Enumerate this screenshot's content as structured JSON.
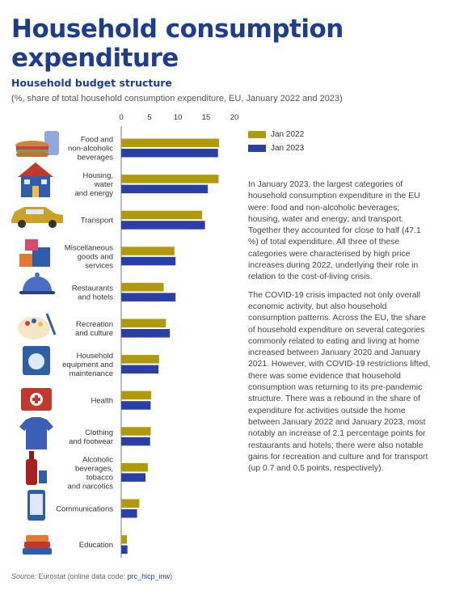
{
  "header": {
    "title": "Household consumption expenditure",
    "subtitle": "Household budget structure",
    "description": "(%, share of total household consumption expenditure, EU, January 2022 and 2023)"
  },
  "legend": [
    {
      "label": "Jan 2022",
      "color": "#b09a0b"
    },
    {
      "label": "Jan 2023",
      "color": "#2a3fa6"
    }
  ],
  "chart_data": {
    "type": "bar",
    "orientation": "horizontal",
    "categories": [
      "Food and non-alcoholic beverages",
      "Housing, water and energy",
      "Transport",
      "Miscellaneous goods and services",
      "Restaurants and hotels",
      "Recreation and culture",
      "Household equipment and maintenance",
      "Health",
      "Clothing and footwear",
      "Alcoholic beverages, tobacco and narcotics",
      "Communications",
      "Education"
    ],
    "category_lines": [
      [
        "Food and",
        "non-alcoholic",
        "beverages"
      ],
      [
        "Housing,",
        "water",
        "and energy"
      ],
      [
        "Transport"
      ],
      [
        "Miscellaneous",
        "goods and",
        "services"
      ],
      [
        "Restaurants",
        "and hotels"
      ],
      [
        "Recreation",
        "and culture"
      ],
      [
        "Household",
        "equipment and",
        "maintenance"
      ],
      [
        "Health"
      ],
      [
        "Clothing",
        "and footwear"
      ],
      [
        "Alcoholic",
        "beverages,",
        "tobacco",
        "and narcotics"
      ],
      [
        "Communications"
      ],
      [
        "Education"
      ]
    ],
    "icons": [
      "sandwich-drink-icon",
      "house-icon",
      "car-icon",
      "boxes-icon",
      "cloche-icon",
      "palette-icon",
      "appliance-icon",
      "first-aid-kit-icon",
      "shirt-icon",
      "bottle-icon",
      "smartphone-icon",
      "books-icon"
    ],
    "series": [
      {
        "name": "Jan 2022",
        "color": "#b09a0b",
        "values": [
          17.3,
          17.2,
          14.3,
          9.4,
          7.5,
          7.9,
          6.7,
          5.3,
          5.2,
          4.7,
          3.2,
          1.0
        ]
      },
      {
        "name": "Jan 2023",
        "color": "#2a3fa6",
        "values": [
          17.1,
          15.3,
          14.8,
          9.6,
          9.6,
          8.6,
          6.6,
          5.2,
          5.1,
          4.3,
          2.8,
          1.1
        ]
      }
    ],
    "xticks": [
      0,
      5,
      10,
      15,
      20
    ],
    "xlim": [
      0,
      20
    ],
    "grid": false,
    "legend_position": "top-right"
  },
  "body": {
    "paragraph1": "In January 2023, the largest categories of household consumption expenditure in the EU were: food and non-alcoholic beverages; housing, water and energy; and transport. Together they accounted for close to half (47.1 %) of total expenditure. All three of these categories were characterised by high price increases during 2022, underlying their role in relation to the cost-of-living crisis.",
    "paragraph2": "The COVID-19 crisis impacted not only overall economic activity, but also household consumption patterns. Across the EU, the share of household expenditure on several categories commonly related to eating and living at home increased between January 2020 and January 2021. However, with COVID-19 restrictions lifted, there was some evidence that household consumption was returning to its pre-pandemic structure. There was a rebound in the share of expenditure for activities outside the home between January 2022 and January 2023, most notably an increase of 2.1 percentage points for restaurants and hotels; there were also notable gains for recreation and culture and for transport (up 0.7 and 0.5 points, respectively)."
  },
  "source": {
    "label": "Source:",
    "text": "Eurostat (online data code:",
    "code": "prc_hicp_inw",
    "close": ")"
  }
}
